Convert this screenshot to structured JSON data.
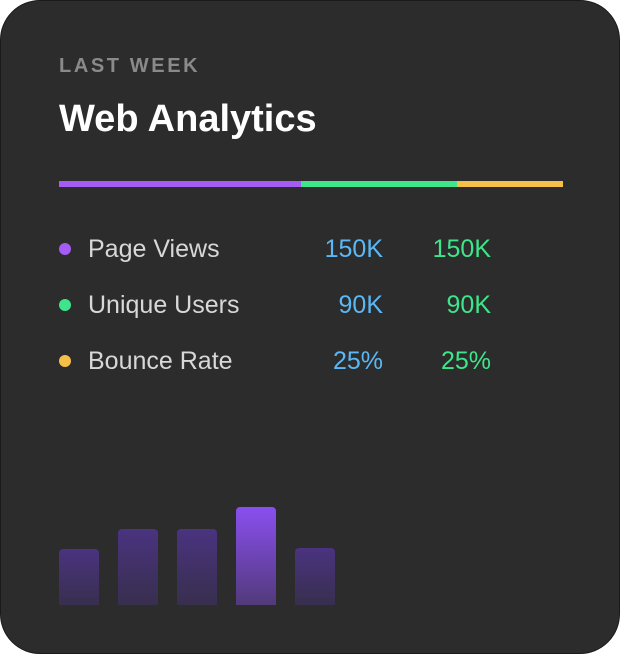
{
  "card": {
    "eyebrow": "LAST WEEK",
    "title": "Web Analytics"
  },
  "progress": [
    {
      "name": "page-views",
      "color": "#a45cf5",
      "fraction": 0.48
    },
    {
      "name": "unique-users",
      "color": "#3ee58a",
      "fraction": 0.31
    },
    {
      "name": "bounce-rate",
      "color": "#f5c048",
      "fraction": 0.21
    }
  ],
  "metrics": [
    {
      "label": "Page Views",
      "value1": "150K",
      "value2": "150K",
      "color": "#a45cf5"
    },
    {
      "label": "Unique Users",
      "value1": "90K",
      "value2": "90K",
      "color": "#3ee58a"
    },
    {
      "label": "Bounce Rate",
      "value1": "25%",
      "value2": "25%",
      "color": "#f5c048"
    }
  ],
  "colors": {
    "value1": "#5bb8f5",
    "value2": "#3ee58a",
    "bar_default": "#4a3380",
    "bar_highlight": "#8a4ff0"
  },
  "chart_data": {
    "type": "bar",
    "values": [
      0.57,
      0.78,
      0.78,
      1.0,
      0.58
    ],
    "highlighted_index": 3
  }
}
